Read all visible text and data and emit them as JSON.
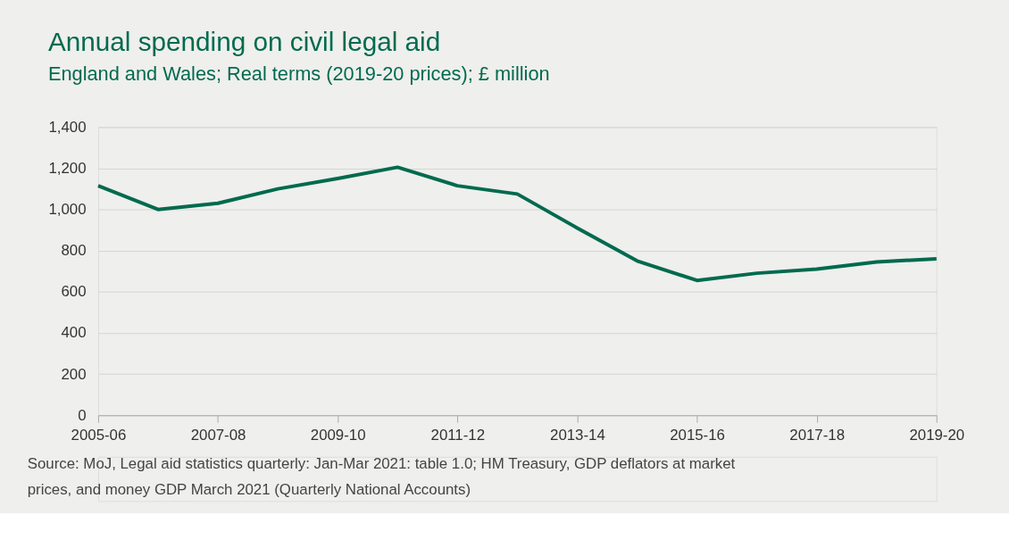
{
  "chart_data": {
    "type": "line",
    "title": "Annual spending on civil legal aid",
    "subtitle": "England and Wales; Real terms (2019-20 prices); £ million",
    "categories": [
      "2005-06",
      null,
      "2007-08",
      null,
      "2009-10",
      null,
      "2011-12",
      null,
      "2013-14",
      null,
      "2015-16",
      null,
      "2017-18",
      null,
      "2019-20"
    ],
    "series": [
      {
        "color": "#006a4e",
        "values": [
          1115,
          1000,
          1030,
          1100,
          1150,
          1205,
          1115,
          1075,
          910,
          750,
          655,
          690,
          710,
          745,
          760
        ]
      }
    ],
    "ylim": [
      0,
      1400
    ],
    "yticks": [
      0,
      200,
      400,
      600,
      800,
      {
        "value": 1000,
        "label": "1,000"
      },
      {
        "value": 1200,
        "label": "1,200"
      },
      {
        "value": 1400,
        "label": "1,400"
      }
    ],
    "grid": "y",
    "marker": "none",
    "line_style": "solid",
    "annotations": [
      "Source: MoJ, Legal aid statistics quarterly: Jan-Mar 2021: table 1.0; HM Treasury, GDP deflators at market prices, and money GDP March 2021 (Quarterly National Accounts)"
    ]
  }
}
